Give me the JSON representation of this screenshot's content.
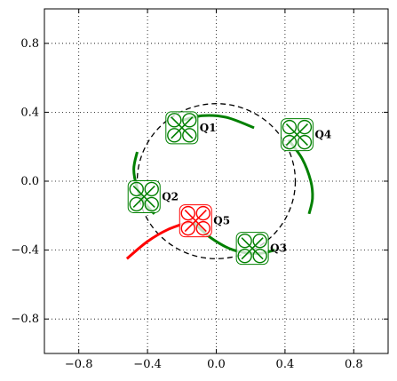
{
  "chart_data": {
    "type": "scatter",
    "xlim": [
      -1.0,
      1.0
    ],
    "ylim": [
      -1.0,
      1.0
    ],
    "xticks": [
      -0.8,
      -0.4,
      0.0,
      0.4,
      0.8
    ],
    "yticks": [
      -0.8,
      -0.4,
      0.0,
      0.4,
      0.8
    ],
    "xtick_labels": [
      "−0.8",
      "−0.4",
      "0.0",
      "0.4",
      "0.8"
    ],
    "ytick_labels": [
      "−0.8",
      "−0.4",
      "0.0",
      "0.4",
      "0.8"
    ],
    "grid": "dotted",
    "reference_ellipse": {
      "center": [
        0.0,
        0.0
      ],
      "rx": 0.46,
      "ry": 0.45,
      "style": "dashed",
      "color": "#000000"
    },
    "arcs": [
      {
        "color": "#008000",
        "points": [
          [
            -0.21,
            0.35
          ],
          [
            -0.08,
            0.38
          ],
          [
            0.06,
            0.37
          ],
          [
            0.22,
            0.31
          ]
        ]
      },
      {
        "color": "#008000",
        "points": [
          [
            0.42,
            0.24
          ],
          [
            0.5,
            0.13
          ],
          [
            0.55,
            0.0
          ],
          [
            0.56,
            -0.1
          ],
          [
            0.54,
            -0.19
          ]
        ]
      },
      {
        "color": "#008000",
        "points": [
          [
            -0.46,
            0.17
          ],
          [
            -0.48,
            0.07
          ],
          [
            -0.46,
            -0.04
          ],
          [
            -0.42,
            -0.12
          ],
          [
            -0.36,
            -0.19
          ]
        ]
      },
      {
        "color": "#008000",
        "points": [
          [
            -0.13,
            -0.24
          ],
          [
            -0.03,
            -0.33
          ],
          [
            0.1,
            -0.4
          ],
          [
            0.24,
            -0.42
          ],
          [
            0.34,
            -0.4
          ]
        ]
      },
      {
        "color": "#ff0000",
        "points": [
          [
            -0.52,
            -0.45
          ],
          [
            -0.4,
            -0.35
          ],
          [
            -0.28,
            -0.28
          ],
          [
            -0.14,
            -0.23
          ]
        ]
      }
    ],
    "quadcopters": [
      {
        "label": "Q1",
        "x": -0.2,
        "y": 0.31,
        "color": "#008000"
      },
      {
        "label": "Q2",
        "x": -0.42,
        "y": -0.09,
        "color": "#008000"
      },
      {
        "label": "Q3",
        "x": 0.21,
        "y": -0.39,
        "color": "#008000"
      },
      {
        "label": "Q4",
        "x": 0.47,
        "y": 0.27,
        "color": "#008000"
      },
      {
        "label": "Q5",
        "x": -0.12,
        "y": -0.23,
        "color": "#ff0000"
      }
    ]
  }
}
